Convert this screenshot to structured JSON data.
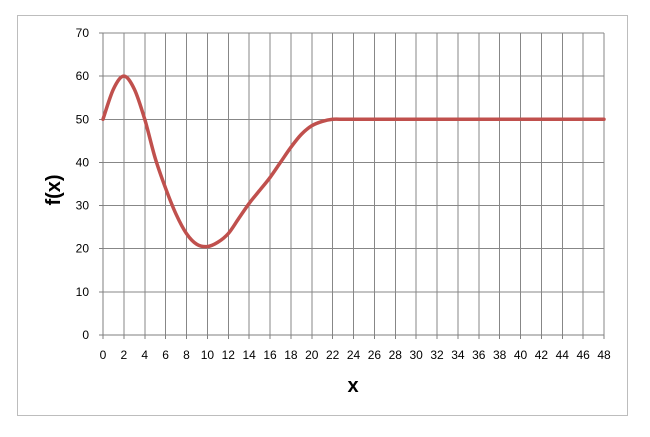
{
  "chart_data": {
    "type": "line",
    "title": "",
    "xlabel": "x",
    "ylabel": "f(x)",
    "xlim": [
      0,
      48
    ],
    "ylim": [
      0,
      70
    ],
    "x_ticks": [
      0,
      2,
      4,
      6,
      8,
      10,
      12,
      14,
      16,
      18,
      20,
      22,
      24,
      26,
      28,
      30,
      32,
      34,
      36,
      38,
      40,
      42,
      44,
      46,
      48
    ],
    "y_ticks": [
      0,
      10,
      20,
      30,
      40,
      50,
      60,
      70
    ],
    "grid": true,
    "legend": "none",
    "series_color": "#c0504d",
    "series": [
      {
        "x": [
          0,
          1,
          2,
          3,
          4,
          5,
          6,
          7,
          8,
          9,
          10,
          11,
          12,
          13,
          14,
          15,
          16,
          17,
          18,
          19,
          20,
          21,
          22,
          23,
          24,
          26,
          28,
          30,
          32,
          34,
          36,
          38,
          40,
          42,
          44,
          46,
          48
        ],
        "y": [
          50,
          57,
          60,
          57,
          50,
          41,
          34,
          28,
          23.5,
          21,
          20.5,
          21.5,
          23.5,
          27,
          30.5,
          33.5,
          36.5,
          40,
          43.5,
          46.5,
          48.5,
          49.5,
          50,
          50,
          50,
          50,
          50,
          50,
          50,
          50,
          50,
          50,
          50,
          50,
          50,
          50,
          50
        ]
      }
    ]
  }
}
